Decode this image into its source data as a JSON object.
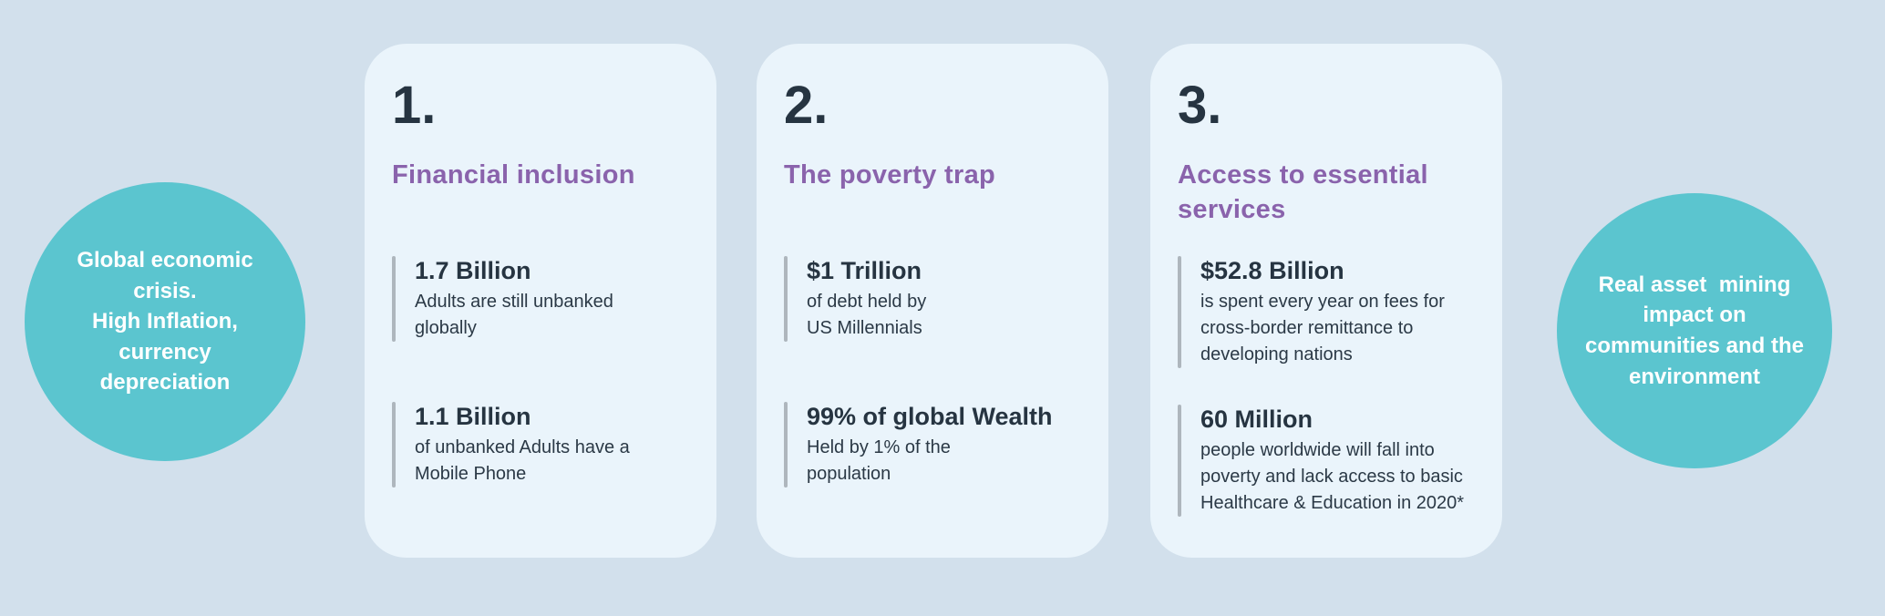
{
  "colors": {
    "background": "#d2e0ec",
    "card_background": "#eaf4fb",
    "circle_teal": "#5bc5cf",
    "heading_purple": "#8a63ac",
    "text_dark": "#263441",
    "accent_bar_gray": "#aeb6bd"
  },
  "left_circle": {
    "text": "Global economic\ncrisis.\nHigh Inflation,\ncurrency\ndepreciation"
  },
  "right_circle": {
    "text": "Real asset  mining\nimpact on\ncommunities and the\nenvironment"
  },
  "cards": [
    {
      "number": "1.",
      "heading": "Financial inclusion",
      "stats": [
        {
          "value": "1.7 Billion",
          "description": "Adults are still unbanked\nglobally"
        },
        {
          "value": "1.1 Billion",
          "description": "of unbanked Adults have a\nMobile Phone"
        }
      ]
    },
    {
      "number": "2.",
      "heading": "The poverty trap",
      "stats": [
        {
          "value": "$1 Trillion",
          "description": "of debt held by\nUS Millennials"
        },
        {
          "value": "99% of global Wealth",
          "description": "Held by 1% of the\npopulation"
        }
      ]
    },
    {
      "number": "3.",
      "heading": "Access to essential\nservices",
      "stats": [
        {
          "value": "$52.8 Billion",
          "description": "is spent every year on fees for\ncross-border remittance to\ndeveloping nations"
        },
        {
          "value": "60 Million",
          "description": "people worldwide will fall into\npoverty and lack access to basic\nHealthcare & Education in 2020*"
        }
      ]
    }
  ]
}
